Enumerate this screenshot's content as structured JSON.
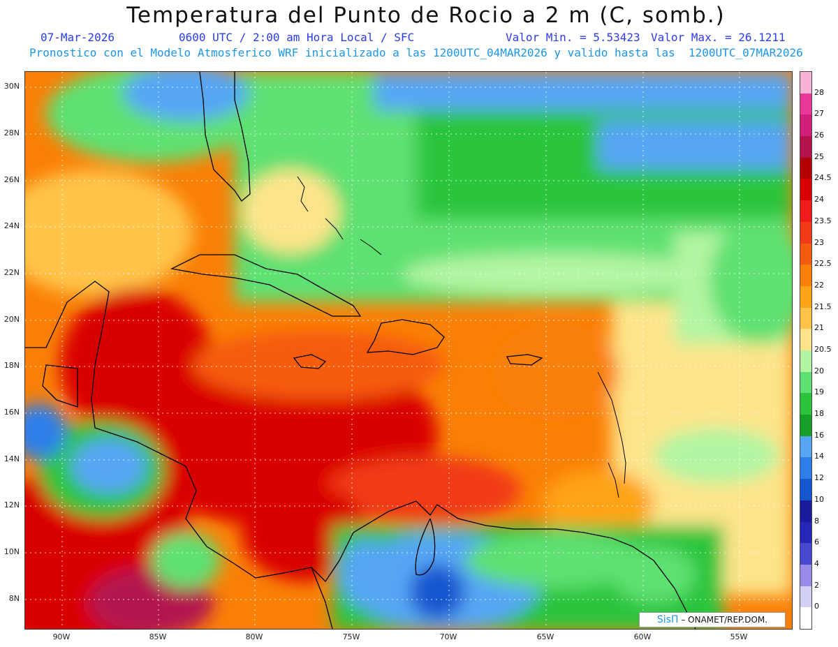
{
  "title": "Temperatura del Punto de Rocio a 2 m (C, somb.)",
  "date": "07-Mar-2026",
  "time_text": "0600 UTC / 2:00 am Hora Local / SFC",
  "min_text": "Valor Min. = 5.53423",
  "max_text": "Valor Max. = 26.1211",
  "model_text": "Pronostico con el Modelo Atmosferico WRF inicializado a las 1200UTC_04MAR2026 y valido hasta las  1200UTC_07MAR2026",
  "lat_labels": [
    "30N",
    "28N",
    "26N",
    "24N",
    "22N",
    "20N",
    "18N",
    "16N",
    "14N",
    "12N",
    "10N",
    "8N"
  ],
  "lon_labels": [
    "90W",
    "85W",
    "80W",
    "75W",
    "70W",
    "65W",
    "60W",
    "55W"
  ],
  "colorbar": {
    "labels": [
      "28",
      "27",
      "26",
      "25",
      "24.5",
      "24",
      "23.5",
      "23",
      "22.5",
      "22",
      "21.5",
      "21",
      "20.5",
      "20",
      "19",
      "18",
      "16",
      "14",
      "12",
      "10",
      "8",
      "6",
      "4",
      "2",
      "0"
    ],
    "colors": [
      "#f7b2d6",
      "#e8399b",
      "#d11f7a",
      "#b3124f",
      "#b30000",
      "#d90000",
      "#ee1c1c",
      "#f13a16",
      "#f65c0f",
      "#fa8007",
      "#ffa317",
      "#ffc449",
      "#fde48a",
      "#b4f5a3",
      "#5ee072",
      "#2cc43c",
      "#17a028",
      "#56a6f4",
      "#2e7fea",
      "#1656cf",
      "#1a1a9e",
      "#2626b8",
      "#4747cf",
      "#9a8ae8",
      "#d2d2f7",
      "#ffffff"
    ]
  },
  "logo": {
    "sis": "SisΠ",
    "text": "– ONAMET/REP.DOM."
  }
}
